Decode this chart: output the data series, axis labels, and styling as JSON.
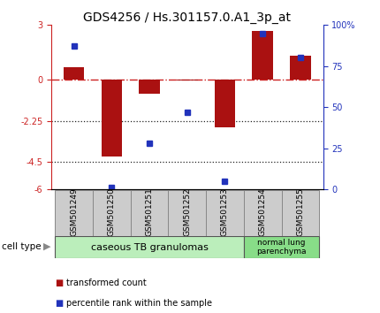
{
  "title": "GDS4256 / Hs.301157.0.A1_3p_at",
  "samples": [
    "GSM501249",
    "GSM501250",
    "GSM501251",
    "GSM501252",
    "GSM501253",
    "GSM501254",
    "GSM501255"
  ],
  "red_bars": [
    0.7,
    -4.2,
    -0.75,
    -0.05,
    -2.6,
    2.7,
    1.3
  ],
  "blue_pct": [
    87,
    1,
    28,
    47,
    5,
    95,
    80
  ],
  "ylim_left": [
    -6,
    3
  ],
  "ylim_right": [
    0,
    100
  ],
  "yticks_left": [
    -6,
    -4.5,
    -2.25,
    0,
    3
  ],
  "ytick_labels_left": [
    "-6",
    "-4.5",
    "-2.25",
    "0",
    "3"
  ],
  "yticks_right": [
    0,
    25,
    50,
    75,
    100
  ],
  "ytick_labels_right": [
    "0",
    "25",
    "50",
    "75",
    "100%"
  ],
  "hlines_dotted": [
    -2.25,
    -4.5
  ],
  "hline_dashed": 0,
  "bar_width": 0.55,
  "red_color": "#aa1111",
  "blue_color": "#2233bb",
  "dashed_color": "#cc2222",
  "dotted_color": "#222222",
  "bg_plot": "#ffffff",
  "bg_fig": "#ffffff",
  "cell_type_label": "cell type",
  "group1_label": "caseous TB granulomas",
  "group2_label": "normal lung\nparenchyma",
  "group1_color": "#bbeebb",
  "group2_color": "#88dd88",
  "tick_box_color": "#cccccc",
  "legend_red": "transformed count",
  "legend_blue": "percentile rank within the sample",
  "title_fontsize": 10,
  "tick_fontsize": 7,
  "label_fontsize": 6.5,
  "legend_fontsize": 7,
  "group_fontsize": 8
}
